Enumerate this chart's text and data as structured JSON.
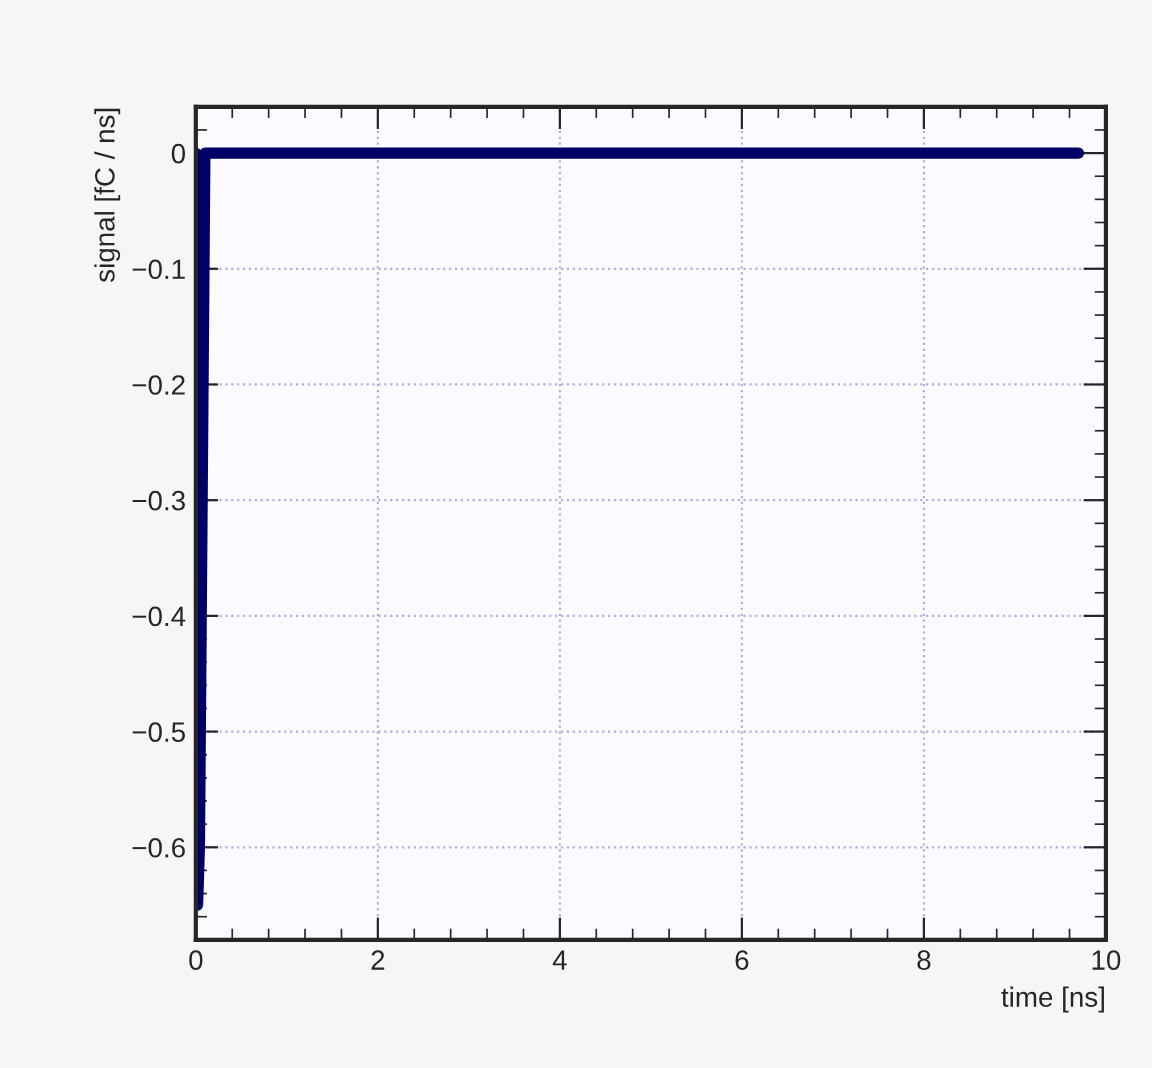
{
  "chart_data": {
    "type": "line",
    "xlabel": "time [ns]",
    "ylabel": "signal [fC / ns]",
    "x": [
      0,
      0.02,
      0.04,
      0.07,
      0.1,
      9.7
    ],
    "series": [
      {
        "color": "#000066",
        "values": [
          0,
          -0.65,
          -0.6,
          -0.3,
          0,
          0
        ]
      }
    ],
    "xlim": [
      0,
      10
    ],
    "ylim": [
      -0.68,
      0.04
    ],
    "xticks": [
      0,
      2,
      4,
      6,
      8,
      10
    ],
    "yticks": [
      {
        "value": 0,
        "label": "0"
      },
      {
        "value": -0.1,
        "label": "−0.1"
      },
      {
        "value": -0.2,
        "label": "−0.2"
      },
      {
        "value": -0.3,
        "label": "−0.3"
      },
      {
        "value": -0.4,
        "label": "−0.4"
      },
      {
        "value": -0.5,
        "label": "−0.5"
      },
      {
        "value": -0.6,
        "label": "−0.6"
      }
    ],
    "grid": true,
    "line_style": "solid",
    "marker": "none"
  }
}
